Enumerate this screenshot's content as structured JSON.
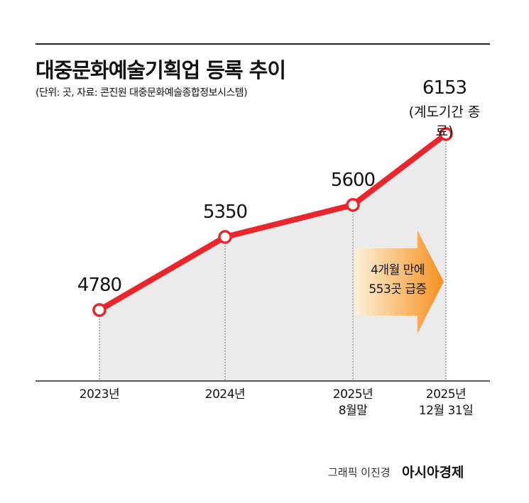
{
  "chart_data": {
    "type": "line",
    "title": "대중문화예술기획업 등록 추이",
    "subtitle": "(단위: 곳, 자료: 콘진원 대중문화예술종합정보시스템)",
    "categories": [
      "2023년",
      "2024년",
      "2025년\n8월말",
      "2025년\n12월 31일"
    ],
    "values": [
      4780,
      5350,
      5600,
      6153
    ],
    "color": "#e8262c",
    "annotations": [
      "(계도기간 종료)",
      "4개월 만에\n553곳 급증"
    ],
    "credit": "그래픽 이진경",
    "brand": "아시아경제"
  }
}
